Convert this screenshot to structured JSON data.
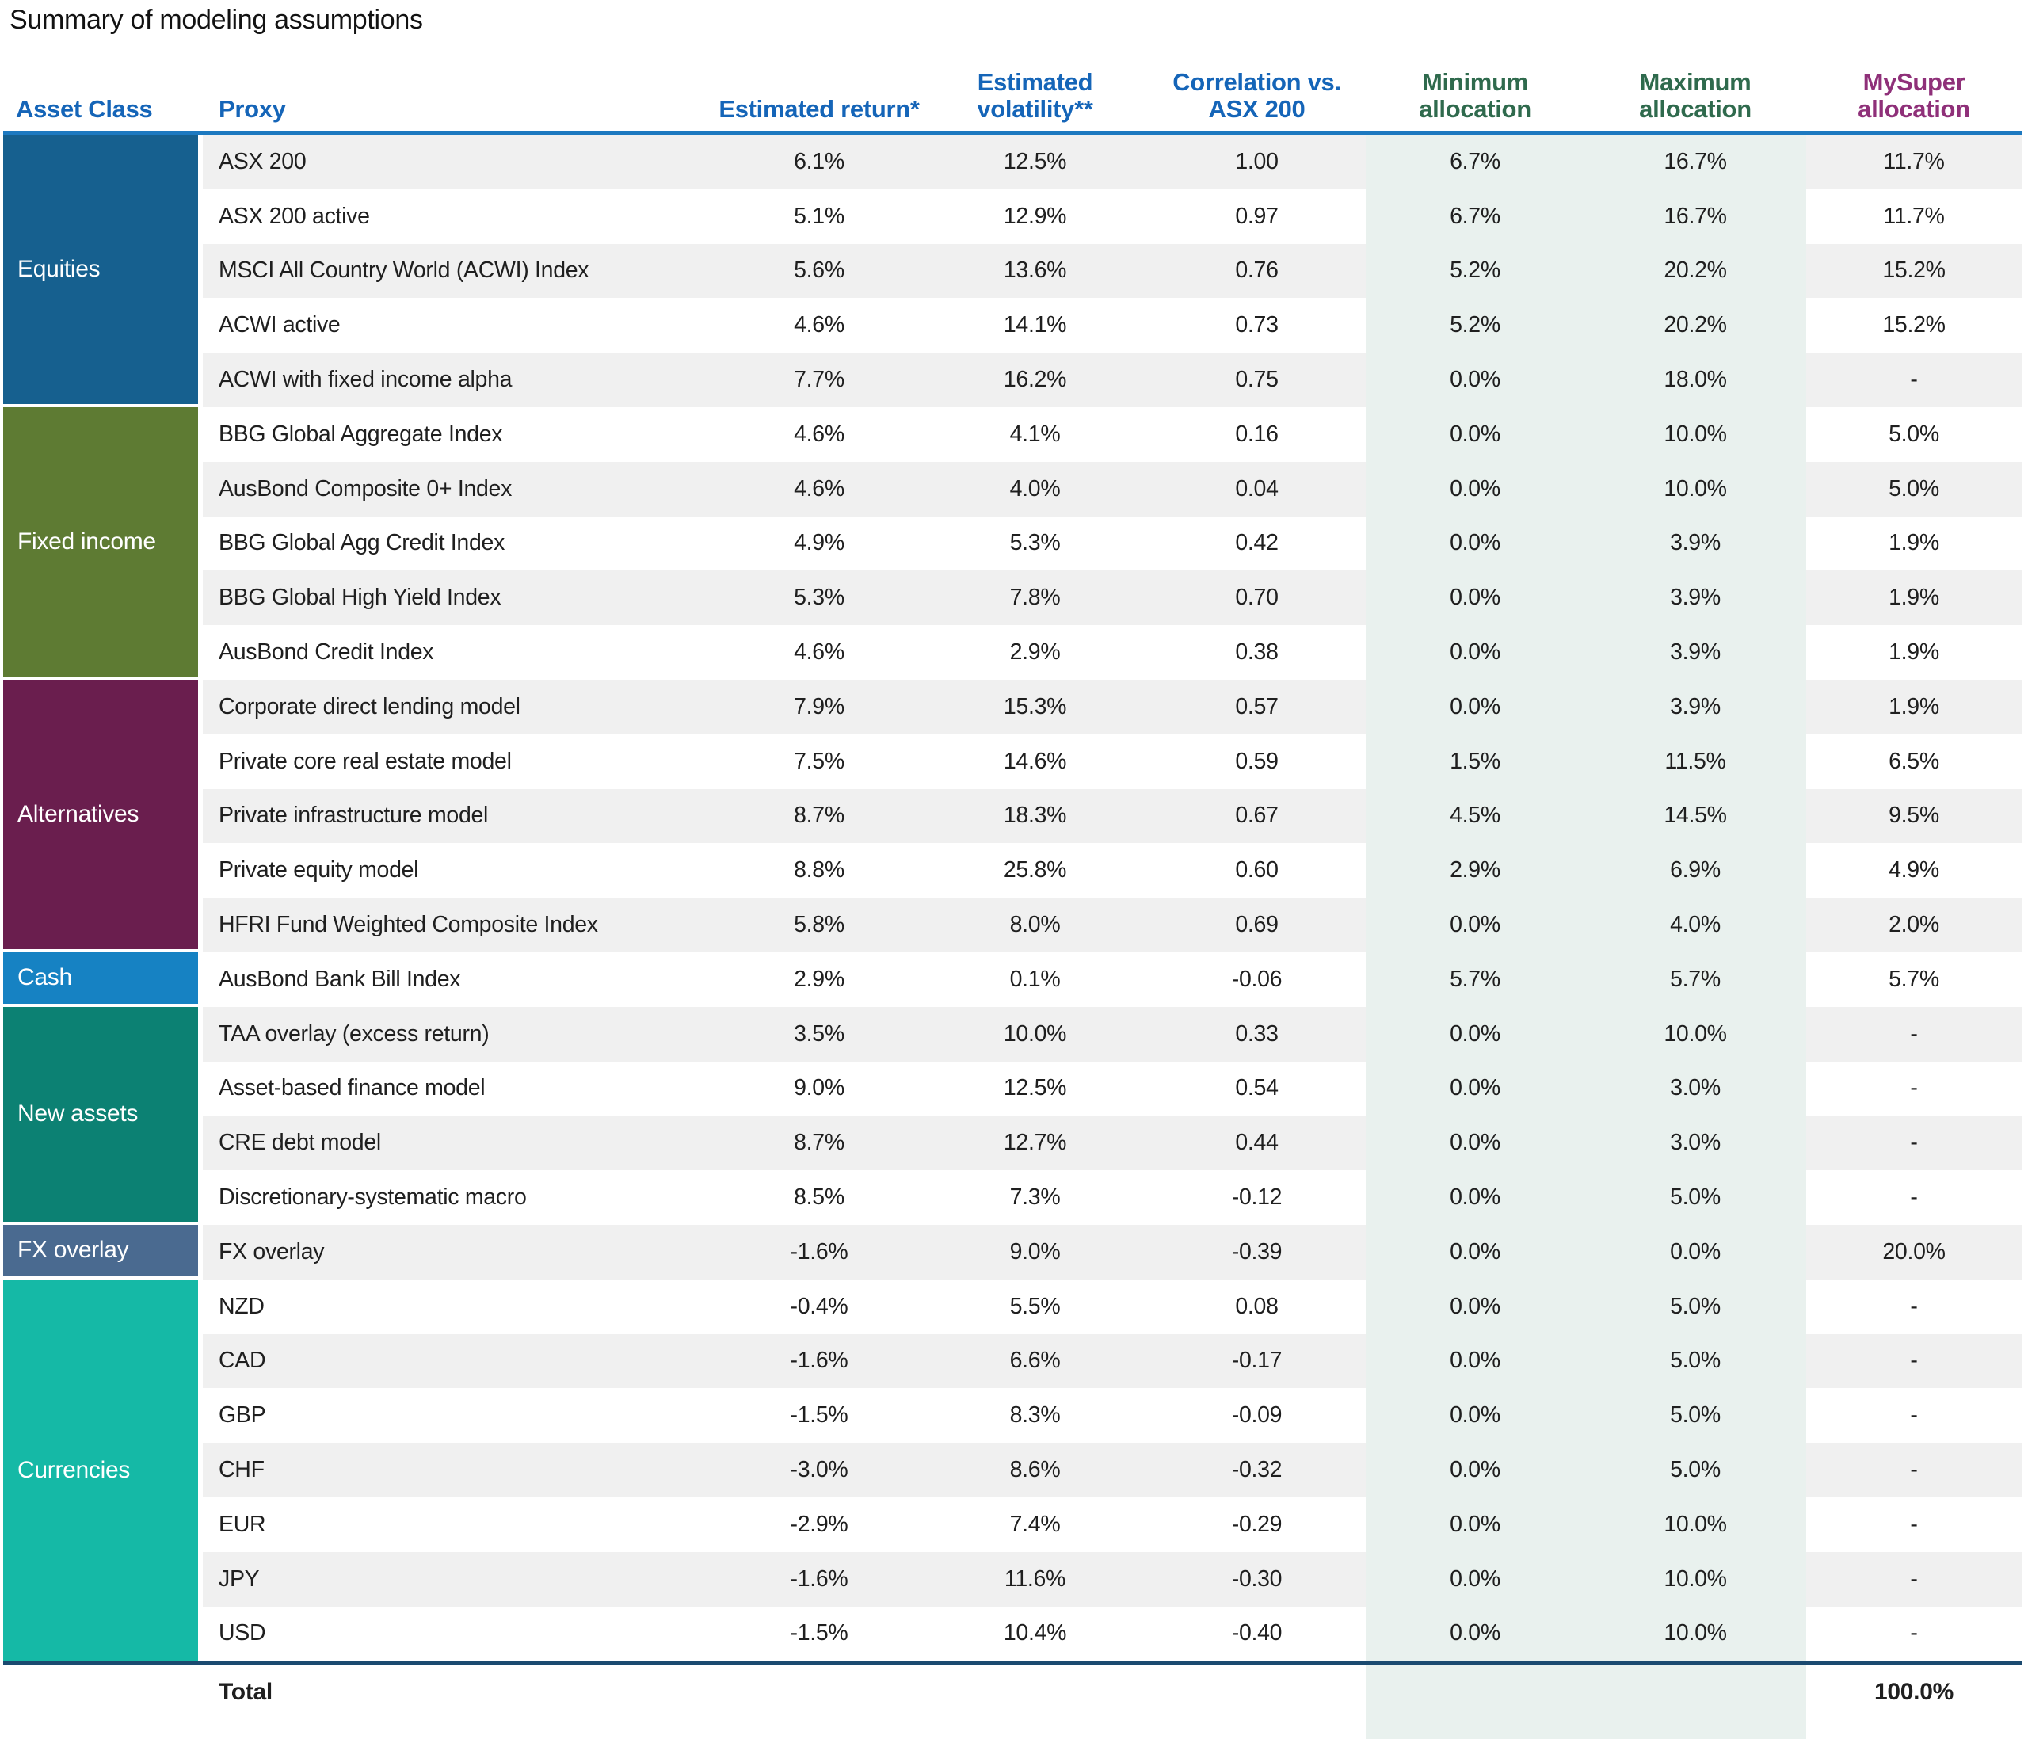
{
  "title": "Summary of modeling assumptions",
  "table": {
    "columns": [
      {
        "key": "asset_class",
        "label": "Asset Class",
        "color": "#1565b8"
      },
      {
        "key": "proxy",
        "label": "Proxy",
        "color": "#1565b8"
      },
      {
        "key": "est_return",
        "label": "Estimated return*",
        "color": "#1565b8"
      },
      {
        "key": "est_vol",
        "label": "Estimated volatility**",
        "color": "#1565b8"
      },
      {
        "key": "corr",
        "label": "Correlation vs. ASX 200",
        "color": "#1565b8"
      },
      {
        "key": "min",
        "label": "Minimum allocation",
        "color": "#2f6a4d"
      },
      {
        "key": "max",
        "label": "Maximum allocation",
        "color": "#2f6a4d"
      },
      {
        "key": "mysuper",
        "label": "MySuper allocation",
        "color": "#8f3079"
      }
    ],
    "accent_colors": {
      "header_rule": "#1d79c0",
      "total_rule": "#1b4a70",
      "stripe": "#f0f0f0",
      "allocation_band": "#e9f1ee"
    },
    "groups": [
      {
        "name": "Equities",
        "color": "#16608f",
        "rows": [
          {
            "proxy": "ASX 200",
            "est_return": "6.1%",
            "est_vol": "12.5%",
            "corr": "1.00",
            "min": "6.7%",
            "max": "16.7%",
            "mysuper": "11.7%"
          },
          {
            "proxy": "ASX 200 active",
            "est_return": "5.1%",
            "est_vol": "12.9%",
            "corr": "0.97",
            "min": "6.7%",
            "max": "16.7%",
            "mysuper": "11.7%"
          },
          {
            "proxy": "MSCI All Country World (ACWI) Index",
            "est_return": "5.6%",
            "est_vol": "13.6%",
            "corr": "0.76",
            "min": "5.2%",
            "max": "20.2%",
            "mysuper": "15.2%"
          },
          {
            "proxy": "ACWI active",
            "est_return": "4.6%",
            "est_vol": "14.1%",
            "corr": "0.73",
            "min": "5.2%",
            "max": "20.2%",
            "mysuper": "15.2%"
          },
          {
            "proxy": "ACWI with fixed income alpha",
            "est_return": "7.7%",
            "est_vol": "16.2%",
            "corr": "0.75",
            "min": "0.0%",
            "max": "18.0%",
            "mysuper": "-"
          }
        ]
      },
      {
        "name": "Fixed income",
        "color": "#5e7b33",
        "rows": [
          {
            "proxy": "BBG Global Aggregate Index",
            "est_return": "4.6%",
            "est_vol": "4.1%",
            "corr": "0.16",
            "min": "0.0%",
            "max": "10.0%",
            "mysuper": "5.0%"
          },
          {
            "proxy": "AusBond Composite 0+ Index",
            "est_return": "4.6%",
            "est_vol": "4.0%",
            "corr": "0.04",
            "min": "0.0%",
            "max": "10.0%",
            "mysuper": "5.0%"
          },
          {
            "proxy": "BBG Global Agg Credit Index",
            "est_return": "4.9%",
            "est_vol": "5.3%",
            "corr": "0.42",
            "min": "0.0%",
            "max": "3.9%",
            "mysuper": "1.9%"
          },
          {
            "proxy": "BBG Global High Yield Index",
            "est_return": "5.3%",
            "est_vol": "7.8%",
            "corr": "0.70",
            "min": "0.0%",
            "max": "3.9%",
            "mysuper": "1.9%"
          },
          {
            "proxy": "AusBond Credit Index",
            "est_return": "4.6%",
            "est_vol": "2.9%",
            "corr": "0.38",
            "min": "0.0%",
            "max": "3.9%",
            "mysuper": "1.9%"
          }
        ]
      },
      {
        "name": "Alternatives",
        "color": "#6a1e4e",
        "rows": [
          {
            "proxy": "Corporate direct lending model",
            "est_return": "7.9%",
            "est_vol": "15.3%",
            "corr": "0.57",
            "min": "0.0%",
            "max": "3.9%",
            "mysuper": "1.9%"
          },
          {
            "proxy": "Private core real estate model",
            "est_return": "7.5%",
            "est_vol": "14.6%",
            "corr": "0.59",
            "min": "1.5%",
            "max": "11.5%",
            "mysuper": "6.5%"
          },
          {
            "proxy": "Private infrastructure model",
            "est_return": "8.7%",
            "est_vol": "18.3%",
            "corr": "0.67",
            "min": "4.5%",
            "max": "14.5%",
            "mysuper": "9.5%"
          },
          {
            "proxy": "Private equity model",
            "est_return": "8.8%",
            "est_vol": "25.8%",
            "corr": "0.60",
            "min": "2.9%",
            "max": "6.9%",
            "mysuper": "4.9%"
          },
          {
            "proxy": "HFRI Fund Weighted Composite Index",
            "est_return": "5.8%",
            "est_vol": "8.0%",
            "corr": "0.69",
            "min": "0.0%",
            "max": "4.0%",
            "mysuper": "2.0%"
          }
        ]
      },
      {
        "name": "Cash",
        "color": "#1682c3",
        "rows": [
          {
            "proxy": "AusBond Bank Bill Index",
            "est_return": "2.9%",
            "est_vol": "0.1%",
            "corr": "-0.06",
            "min": "5.7%",
            "max": "5.7%",
            "mysuper": "5.7%"
          }
        ]
      },
      {
        "name": "New assets",
        "color": "#0c8173",
        "rows": [
          {
            "proxy": "TAA overlay (excess return)",
            "est_return": "3.5%",
            "est_vol": "10.0%",
            "corr": "0.33",
            "min": "0.0%",
            "max": "10.0%",
            "mysuper": "-"
          },
          {
            "proxy": "Asset-based finance model",
            "est_return": "9.0%",
            "est_vol": "12.5%",
            "corr": "0.54",
            "min": "0.0%",
            "max": "3.0%",
            "mysuper": "-"
          },
          {
            "proxy": "CRE debt model",
            "est_return": "8.7%",
            "est_vol": "12.7%",
            "corr": "0.44",
            "min": "0.0%",
            "max": "3.0%",
            "mysuper": "-"
          },
          {
            "proxy": "Discretionary-systematic macro",
            "est_return": "8.5%",
            "est_vol": "7.3%",
            "corr": "-0.12",
            "min": "0.0%",
            "max": "5.0%",
            "mysuper": "-"
          }
        ]
      },
      {
        "name": "FX overlay",
        "color": "#4a6a90",
        "rows": [
          {
            "proxy": "FX overlay",
            "est_return": "-1.6%",
            "est_vol": "9.0%",
            "corr": "-0.39",
            "min": "0.0%",
            "max": "0.0%",
            "mysuper": "20.0%"
          }
        ]
      },
      {
        "name": "Currencies",
        "color": "#15b9a6",
        "rows": [
          {
            "proxy": "NZD",
            "est_return": "-0.4%",
            "est_vol": "5.5%",
            "corr": "0.08",
            "min": "0.0%",
            "max": "5.0%",
            "mysuper": "-"
          },
          {
            "proxy": "CAD",
            "est_return": "-1.6%",
            "est_vol": "6.6%",
            "corr": "-0.17",
            "min": "0.0%",
            "max": "5.0%",
            "mysuper": "-"
          },
          {
            "proxy": "GBP",
            "est_return": "-1.5%",
            "est_vol": "8.3%",
            "corr": "-0.09",
            "min": "0.0%",
            "max": "5.0%",
            "mysuper": "-"
          },
          {
            "proxy": "CHF",
            "est_return": "-3.0%",
            "est_vol": "8.6%",
            "corr": "-0.32",
            "min": "0.0%",
            "max": "5.0%",
            "mysuper": "-"
          },
          {
            "proxy": "EUR",
            "est_return": "-2.9%",
            "est_vol": "7.4%",
            "corr": "-0.29",
            "min": "0.0%",
            "max": "10.0%",
            "mysuper": "-"
          },
          {
            "proxy": "JPY",
            "est_return": "-1.6%",
            "est_vol": "11.6%",
            "corr": "-0.30",
            "min": "0.0%",
            "max": "10.0%",
            "mysuper": "-"
          },
          {
            "proxy": "USD",
            "est_return": "-1.5%",
            "est_vol": "10.4%",
            "corr": "-0.40",
            "min": "0.0%",
            "max": "10.0%",
            "mysuper": "-"
          }
        ]
      }
    ],
    "total": {
      "label": "Total",
      "mysuper": "100.0%"
    }
  }
}
